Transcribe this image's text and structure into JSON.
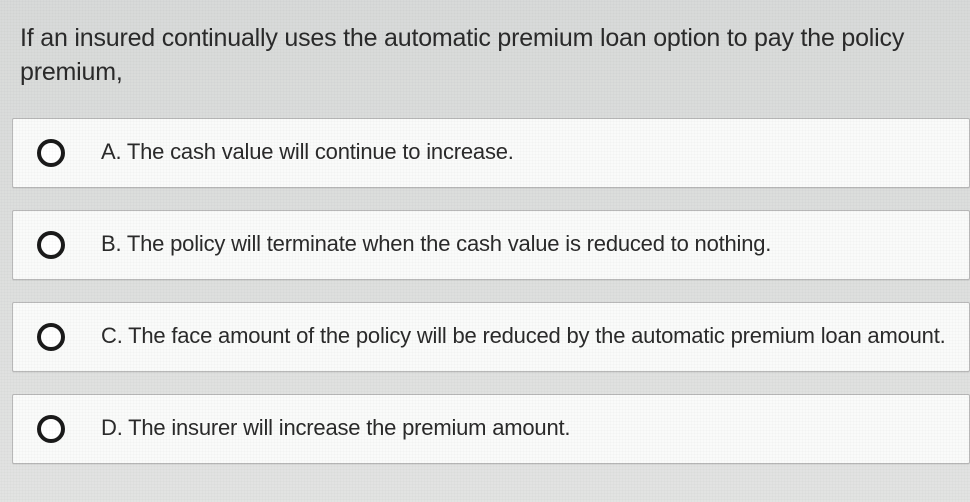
{
  "question": {
    "text": "If an insured continually uses the automatic premium loan option to pay the policy premium,",
    "fontsize": 25,
    "color": "#2a2a2a"
  },
  "options": [
    {
      "label": "A. The cash value will continue to increase."
    },
    {
      "label": "B. The policy will terminate when the cash value is reduced to nothing."
    },
    {
      "label": "C. The face amount of the policy will be reduced by the automatic premium loan amount."
    },
    {
      "label": "D. The insurer will increase the premium amount."
    }
  ],
  "styling": {
    "background_top": "#d8dad9",
    "background_bottom": "#e2e3e2",
    "option_background": "#fafbfa",
    "option_border": "#b8b8b8",
    "radio_border": "#1a1a1a",
    "option_fontsize": 22,
    "option_color": "#2a2a2a"
  }
}
